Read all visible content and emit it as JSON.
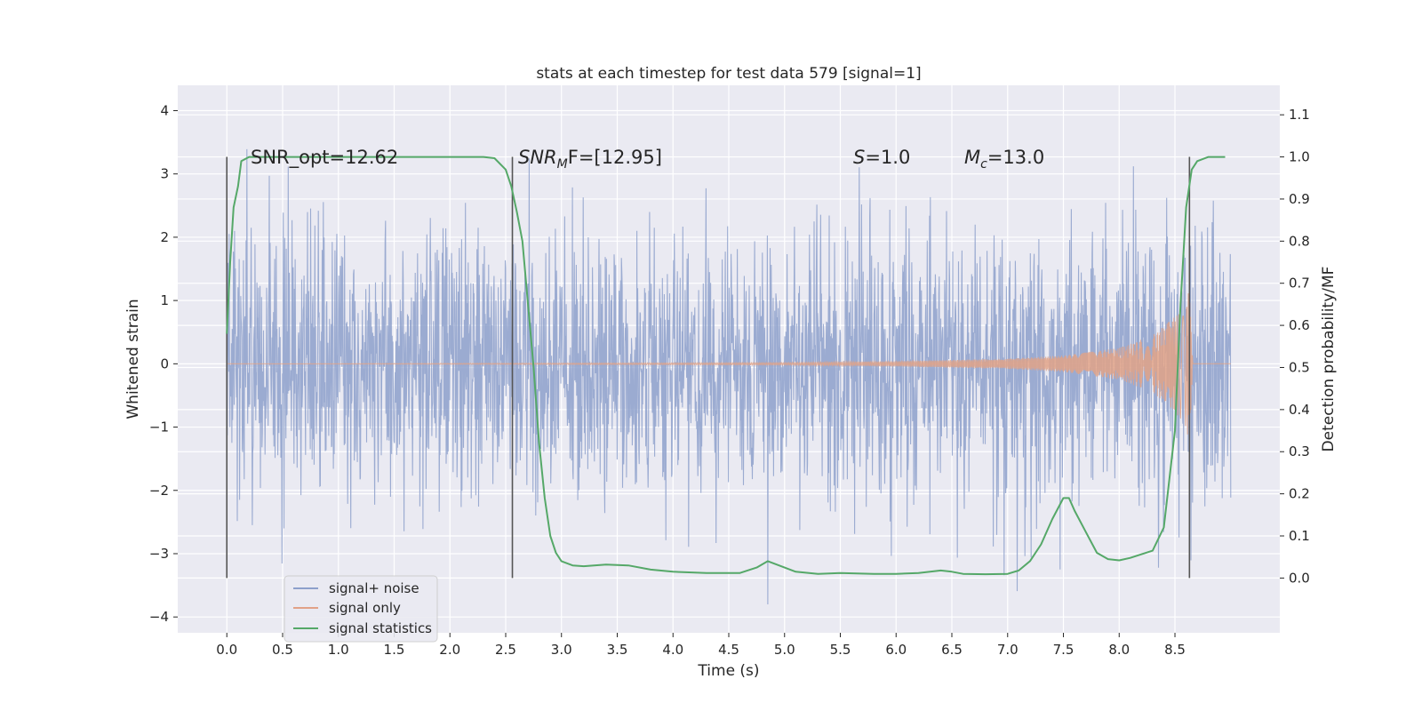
{
  "chart_data": {
    "type": "line",
    "title": "stats at each timestep for test data 579 [signal=1]",
    "xlabel": "Time (s)",
    "ylabel": "Whitened strain",
    "y2label": "Detection probability/MF",
    "xlim": [
      -0.44,
      9.44
    ],
    "ylim": [
      -4.25,
      4.4
    ],
    "y2lim": [
      -0.13,
      1.17
    ],
    "grid": true,
    "xticks": [
      0.0,
      0.5,
      1.0,
      1.5,
      2.0,
      2.5,
      3.0,
      3.5,
      4.0,
      4.5,
      5.0,
      5.5,
      6.0,
      6.5,
      7.0,
      7.5,
      8.0,
      8.5
    ],
    "xtick_labels": [
      "0.0",
      "0.5",
      "1.0",
      "1.5",
      "2.0",
      "2.5",
      "3.0",
      "3.5",
      "4.0",
      "4.5",
      "5.0",
      "5.5",
      "6.0",
      "6.5",
      "7.0",
      "7.5",
      "8.0",
      "8.5"
    ],
    "yticks": [
      -4,
      -3,
      -2,
      -1,
      0,
      1,
      2,
      3,
      4
    ],
    "ytick_labels": [
      "−4",
      "−3",
      "−2",
      "−1",
      "0",
      "1",
      "2",
      "3",
      "4"
    ],
    "y2ticks": [
      0.0,
      0.1,
      0.2,
      0.3,
      0.4,
      0.5,
      0.6,
      0.7,
      0.8,
      0.9,
      1.0,
      1.1
    ],
    "y2tick_labels": [
      "0.0",
      "0.1",
      "0.2",
      "0.3",
      "0.4",
      "0.5",
      "0.6",
      "0.7",
      "0.8",
      "0.9",
      "1.0",
      "1.1"
    ],
    "legend_position": "lower-left",
    "legend": [
      {
        "label": "signal+ noise",
        "color": "#8da0cb"
      },
      {
        "label": "signal only",
        "color": "#e1a287"
      },
      {
        "label": "signal statistics",
        "color": "#55a868"
      }
    ],
    "series": [
      {
        "name": "signal+ noise",
        "axis": "left",
        "color": "#8da0cb",
        "x_range": [
          0.0,
          9.0
        ],
        "amplitude_range": [
          -3.8,
          4.0
        ]
      },
      {
        "name": "signal only",
        "axis": "left",
        "color": "#e1a287",
        "x": [
          0.0,
          5.0,
          6.0,
          7.0,
          7.5,
          8.0,
          8.3,
          8.5,
          8.6,
          8.63,
          8.66,
          9.0
        ],
        "envelope": [
          0.0,
          0.02,
          0.04,
          0.08,
          0.13,
          0.25,
          0.45,
          0.75,
          1.0,
          1.3,
          0.0,
          0.0
        ]
      },
      {
        "name": "signal statistics",
        "axis": "right",
        "color": "#55a868",
        "x": [
          0.0,
          0.03,
          0.06,
          0.1,
          0.13,
          0.2,
          0.3,
          0.5,
          1.0,
          1.5,
          2.0,
          2.3,
          2.4,
          2.5,
          2.55,
          2.6,
          2.65,
          2.7,
          2.75,
          2.8,
          2.85,
          2.9,
          2.95,
          3.0,
          3.1,
          3.2,
          3.4,
          3.6,
          3.8,
          4.0,
          4.3,
          4.6,
          4.75,
          4.85,
          4.95,
          5.1,
          5.3,
          5.5,
          5.8,
          6.0,
          6.2,
          6.4,
          6.5,
          6.6,
          6.8,
          7.0,
          7.1,
          7.2,
          7.3,
          7.4,
          7.5,
          7.55,
          7.6,
          7.7,
          7.8,
          7.9,
          8.0,
          8.1,
          8.3,
          8.4,
          8.5,
          8.55,
          8.6,
          8.65,
          8.7,
          8.8,
          8.95
        ],
        "values": [
          0.58,
          0.75,
          0.88,
          0.93,
          0.99,
          1.0,
          1.0,
          1.0,
          1.0,
          1.0,
          1.0,
          1.0,
          0.997,
          0.97,
          0.93,
          0.87,
          0.8,
          0.65,
          0.5,
          0.32,
          0.19,
          0.1,
          0.06,
          0.04,
          0.03,
          0.028,
          0.032,
          0.03,
          0.02,
          0.015,
          0.012,
          0.012,
          0.025,
          0.04,
          0.03,
          0.015,
          0.01,
          0.012,
          0.01,
          0.01,
          0.012,
          0.018,
          0.015,
          0.01,
          0.009,
          0.01,
          0.018,
          0.04,
          0.08,
          0.14,
          0.19,
          0.19,
          0.16,
          0.11,
          0.06,
          0.045,
          0.042,
          0.048,
          0.065,
          0.12,
          0.35,
          0.65,
          0.88,
          0.97,
          0.99,
          1.0,
          1.0
        ]
      }
    ],
    "vlines": [
      {
        "x": 0.0,
        "color": "#555555"
      },
      {
        "x": 2.56,
        "color": "#555555"
      },
      {
        "x": 8.63,
        "color": "#555555"
      }
    ],
    "annotations": [
      {
        "x": 0.2,
        "y": 3.2,
        "text": "SNR_opt=12.62"
      },
      {
        "x": 2.6,
        "y": 3.2,
        "text_parts": [
          "SNR",
          "M",
          "F=[12.95]"
        ]
      },
      {
        "x": 5.6,
        "y": 3.2,
        "text_parts": [
          "S",
          "=1.0"
        ]
      },
      {
        "x": 6.6,
        "y": 3.2,
        "text_parts": [
          "M",
          "c",
          "=13.0"
        ]
      }
    ]
  }
}
